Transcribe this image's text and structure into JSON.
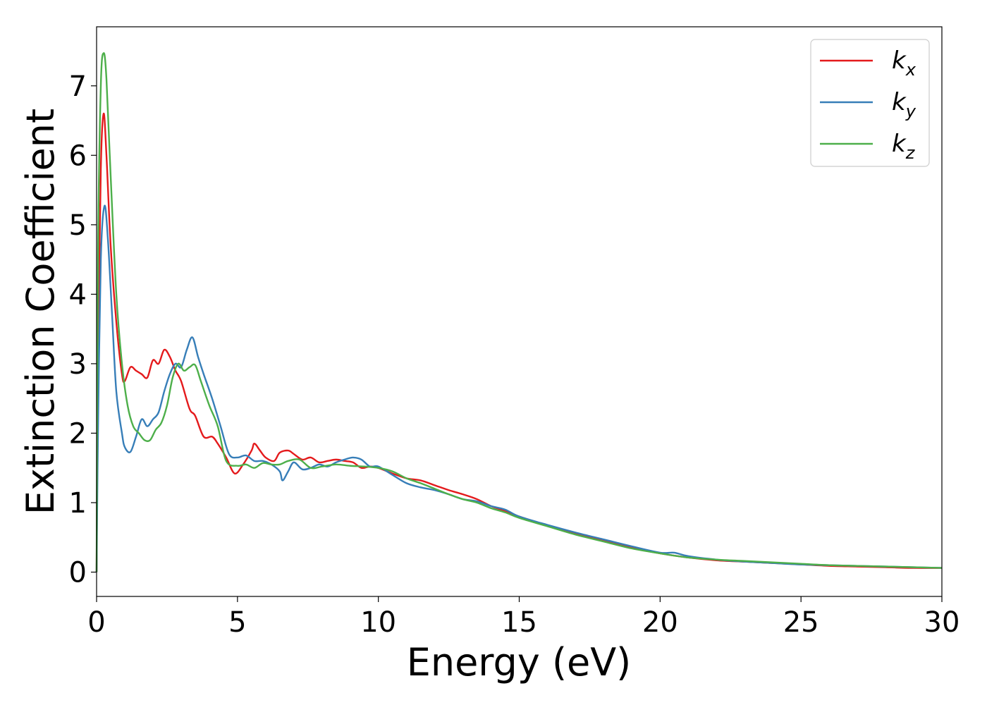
{
  "chart_data": {
    "type": "line",
    "xlabel": "Energy (eV)",
    "ylabel": "Extinction Coefficient",
    "xlim": [
      0,
      30
    ],
    "ylim": [
      -0.35,
      7.85
    ],
    "x_ticks": [
      "0",
      "5",
      "10",
      "15",
      "20",
      "25",
      "30"
    ],
    "y_ticks": [
      "0",
      "1",
      "2",
      "3",
      "4",
      "5",
      "6",
      "7"
    ],
    "grid": false,
    "legend_position": "top-right",
    "series": [
      {
        "name": "k_x",
        "label_base": "k",
        "label_sub": "x",
        "color": "#e41a1c",
        "x": [
          0,
          0.05,
          0.15,
          0.25,
          0.35,
          0.5,
          0.7,
          0.9,
          1.0,
          1.2,
          1.4,
          1.6,
          1.8,
          2.0,
          2.2,
          2.4,
          2.6,
          2.8,
          3.0,
          3.3,
          3.5,
          3.8,
          4.1,
          4.3,
          4.6,
          4.9,
          5.2,
          5.5,
          5.6,
          5.8,
          6.0,
          6.3,
          6.5,
          6.8,
          7.0,
          7.3,
          7.6,
          7.9,
          8.2,
          8.5,
          8.8,
          9.1,
          9.4,
          9.7,
          10.0,
          10.5,
          11.0,
          11.5,
          12.0,
          12.5,
          13.0,
          13.5,
          14.0,
          14.5,
          15.0,
          16.0,
          17.0,
          18.0,
          19.0,
          20.0,
          21.0,
          22.0,
          23.0,
          24.0,
          25.0,
          26.0,
          27.0,
          28.0,
          29.0,
          30.0
        ],
        "values": [
          0.0,
          3.0,
          5.8,
          6.6,
          6.0,
          4.7,
          3.6,
          2.85,
          2.75,
          2.95,
          2.9,
          2.85,
          2.8,
          3.05,
          3.0,
          3.2,
          3.1,
          2.9,
          2.75,
          2.35,
          2.25,
          1.95,
          1.95,
          1.85,
          1.65,
          1.42,
          1.55,
          1.75,
          1.85,
          1.75,
          1.65,
          1.6,
          1.72,
          1.75,
          1.7,
          1.62,
          1.65,
          1.58,
          1.6,
          1.62,
          1.6,
          1.58,
          1.5,
          1.52,
          1.5,
          1.42,
          1.35,
          1.32,
          1.25,
          1.18,
          1.12,
          1.05,
          0.95,
          0.88,
          0.8,
          0.67,
          0.55,
          0.45,
          0.35,
          0.27,
          0.21,
          0.17,
          0.15,
          0.13,
          0.11,
          0.09,
          0.08,
          0.07,
          0.06,
          0.06
        ]
      },
      {
        "name": "k_y",
        "label_base": "k",
        "label_sub": "y",
        "color": "#377eb8",
        "x": [
          0,
          0.05,
          0.15,
          0.28,
          0.4,
          0.55,
          0.7,
          0.9,
          1.0,
          1.2,
          1.4,
          1.6,
          1.8,
          2.0,
          2.2,
          2.4,
          2.6,
          2.8,
          3.0,
          3.2,
          3.4,
          3.6,
          3.8,
          4.1,
          4.4,
          4.7,
          5.0,
          5.3,
          5.6,
          5.9,
          6.2,
          6.5,
          6.6,
          6.8,
          7.0,
          7.3,
          7.6,
          7.9,
          8.2,
          8.5,
          8.8,
          9.1,
          9.4,
          9.7,
          10.0,
          10.5,
          11.0,
          11.5,
          12.0,
          12.5,
          13.0,
          13.5,
          14.0,
          14.5,
          15.0,
          16.0,
          17.0,
          18.0,
          19.0,
          20.0,
          20.5,
          21.0,
          22.0,
          23.0,
          24.0,
          25.0,
          26.0,
          27.0,
          28.0,
          29.0,
          30.0
        ],
        "values": [
          0.0,
          2.0,
          4.5,
          5.27,
          4.8,
          3.7,
          2.6,
          2.0,
          1.8,
          1.73,
          1.95,
          2.2,
          2.1,
          2.2,
          2.3,
          2.6,
          2.85,
          3.0,
          2.95,
          3.2,
          3.38,
          3.1,
          2.85,
          2.5,
          2.1,
          1.7,
          1.65,
          1.68,
          1.6,
          1.6,
          1.55,
          1.45,
          1.32,
          1.45,
          1.58,
          1.48,
          1.5,
          1.55,
          1.52,
          1.58,
          1.62,
          1.65,
          1.62,
          1.52,
          1.52,
          1.4,
          1.28,
          1.22,
          1.18,
          1.12,
          1.05,
          1.02,
          0.95,
          0.9,
          0.8,
          0.68,
          0.57,
          0.47,
          0.37,
          0.28,
          0.28,
          0.23,
          0.18,
          0.15,
          0.13,
          0.11,
          0.1,
          0.09,
          0.08,
          0.07,
          0.06
        ]
      },
      {
        "name": "k_z",
        "label_base": "k",
        "label_sub": "z",
        "color": "#4daf4a",
        "x": [
          0,
          0.05,
          0.15,
          0.25,
          0.35,
          0.5,
          0.7,
          0.9,
          1.1,
          1.3,
          1.5,
          1.7,
          1.9,
          2.1,
          2.3,
          2.5,
          2.7,
          2.9,
          3.1,
          3.3,
          3.5,
          3.7,
          4.0,
          4.3,
          4.6,
          5.0,
          5.3,
          5.6,
          5.9,
          6.2,
          6.5,
          6.8,
          7.2,
          7.6,
          8.0,
          8.5,
          9.0,
          9.5,
          10.0,
          10.5,
          11.0,
          11.5,
          12.0,
          12.5,
          13.0,
          13.5,
          14.0,
          14.5,
          15.0,
          16.0,
          17.0,
          18.0,
          19.0,
          20.0,
          21.0,
          22.0,
          23.0,
          24.0,
          25.0,
          26.0,
          27.0,
          28.0,
          29.0,
          30.0
        ],
        "values": [
          0.0,
          4.5,
          7.0,
          7.47,
          7.1,
          5.7,
          4.0,
          3.0,
          2.4,
          2.1,
          2.0,
          1.9,
          1.9,
          2.05,
          2.15,
          2.4,
          2.8,
          3.0,
          2.9,
          2.95,
          2.98,
          2.75,
          2.4,
          2.1,
          1.6,
          1.53,
          1.55,
          1.5,
          1.57,
          1.55,
          1.55,
          1.6,
          1.62,
          1.5,
          1.52,
          1.55,
          1.53,
          1.52,
          1.5,
          1.45,
          1.35,
          1.28,
          1.2,
          1.12,
          1.05,
          1.0,
          0.92,
          0.86,
          0.78,
          0.66,
          0.54,
          0.44,
          0.34,
          0.27,
          0.21,
          0.18,
          0.16,
          0.14,
          0.12,
          0.1,
          0.09,
          0.08,
          0.07,
          0.06
        ]
      }
    ]
  }
}
